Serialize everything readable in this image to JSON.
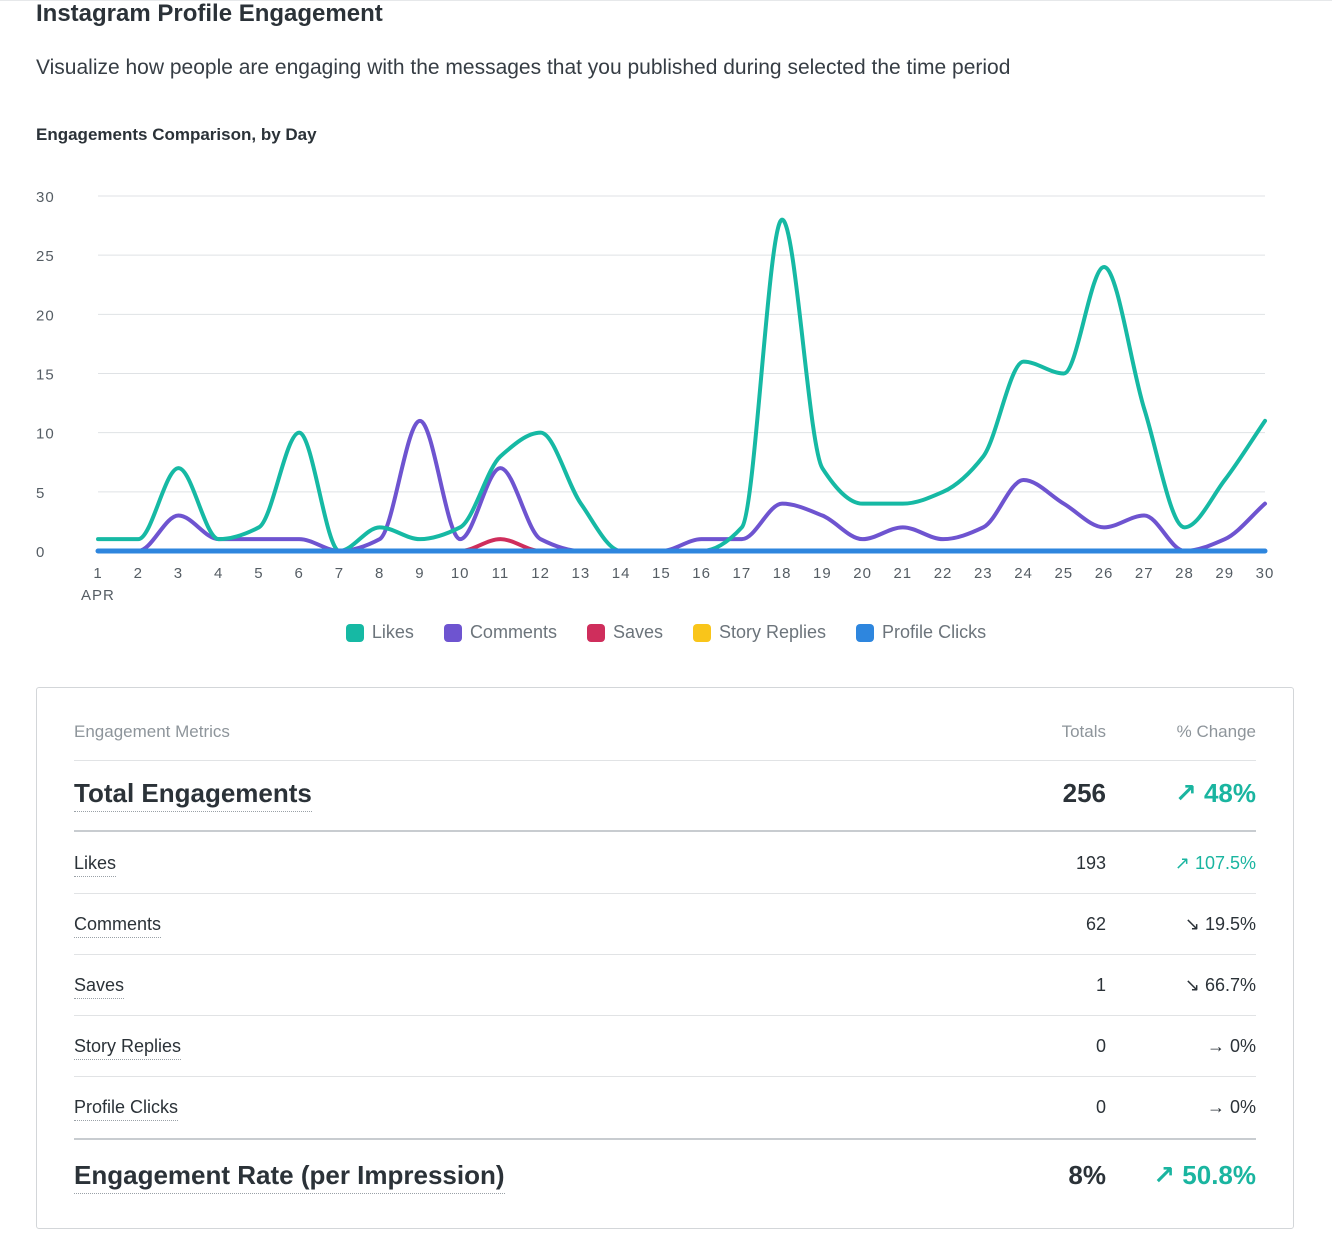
{
  "page": {
    "title": "Instagram Profile Engagement",
    "subtitle": "Visualize how people are engaging with the messages that you published during selected the time period"
  },
  "chart_data": {
    "type": "line",
    "title": "Engagements Comparison, by Day",
    "xlabel": "",
    "ylabel": "",
    "ylim": [
      0,
      30
    ],
    "y_ticks": [
      0,
      5,
      10,
      15,
      20,
      25,
      30
    ],
    "x_tick_labels": [
      "1",
      "2",
      "3",
      "4",
      "5",
      "6",
      "7",
      "8",
      "9",
      "10",
      "11",
      "12",
      "13",
      "14",
      "15",
      "16",
      "17",
      "18",
      "19",
      "20",
      "21",
      "22",
      "23",
      "24",
      "25",
      "26",
      "27",
      "28",
      "29",
      "30"
    ],
    "x_month_label": "APR",
    "grid": true,
    "legend_position": "bottom",
    "x": [
      1,
      2,
      3,
      4,
      5,
      6,
      7,
      8,
      9,
      10,
      11,
      12,
      13,
      14,
      15,
      16,
      17,
      18,
      19,
      20,
      21,
      22,
      23,
      24,
      25,
      26,
      27,
      28,
      29,
      30
    ],
    "series": [
      {
        "name": "Likes",
        "color": "#16b9a4",
        "values": [
          1,
          1,
          7,
          1,
          2,
          10,
          0,
          2,
          1,
          2,
          8,
          10,
          4,
          0,
          0,
          0,
          2,
          28,
          7,
          4,
          4,
          5,
          8,
          16,
          15,
          24,
          12,
          2,
          6,
          11
        ]
      },
      {
        "name": "Comments",
        "color": "#6e54d0",
        "values": [
          0,
          0,
          3,
          1,
          1,
          1,
          0,
          1,
          11,
          1,
          7,
          1,
          0,
          0,
          0,
          1,
          1,
          4,
          3,
          1,
          2,
          1,
          2,
          6,
          4,
          2,
          3,
          0,
          1,
          4
        ]
      },
      {
        "name": "Saves",
        "color": "#cf2e5c",
        "values": [
          0,
          0,
          0,
          0,
          0,
          0,
          0,
          0,
          0,
          0,
          1,
          0,
          0,
          0,
          0,
          0,
          0,
          0,
          0,
          0,
          0,
          0,
          0,
          0,
          0,
          0,
          0,
          0,
          0,
          0
        ]
      },
      {
        "name": "Story Replies",
        "color": "#f9c51a",
        "values": [
          0,
          0,
          0,
          0,
          0,
          0,
          0,
          0,
          0,
          0,
          0,
          0,
          0,
          0,
          0,
          0,
          0,
          0,
          0,
          0,
          0,
          0,
          0,
          0,
          0,
          0,
          0,
          0,
          0,
          0
        ]
      },
      {
        "name": "Profile Clicks",
        "color": "#2e86de",
        "values": [
          0,
          0,
          0,
          0,
          0,
          0,
          0,
          0,
          0,
          0,
          0,
          0,
          0,
          0,
          0,
          0,
          0,
          0,
          0,
          0,
          0,
          0,
          0,
          0,
          0,
          0,
          0,
          0,
          0,
          0
        ]
      }
    ]
  },
  "metrics_table": {
    "header": {
      "metric": "Engagement Metrics",
      "totals": "Totals",
      "change": "% Change"
    },
    "total_engagements": {
      "label": "Total Engagements",
      "total": "256",
      "change": "↗ 48%"
    },
    "rows": [
      {
        "label": "Likes",
        "total": "193",
        "change": "↗ 107.5%"
      },
      {
        "label": "Comments",
        "total": "62",
        "change": "↘ 19.5%"
      },
      {
        "label": "Saves",
        "total": "1",
        "change": "↘ 66.7%"
      },
      {
        "label": "Story Replies",
        "total": "0",
        "change": "→ 0%"
      },
      {
        "label": "Profile Clicks",
        "total": "0",
        "change": "→ 0%"
      }
    ],
    "engagement_rate": {
      "label": "Engagement Rate (per Impression)",
      "total": "8%",
      "change": "↗ 50.8%"
    },
    "colors": {
      "positive": "#1ab5a0",
      "neutral": "#2b3238"
    }
  }
}
